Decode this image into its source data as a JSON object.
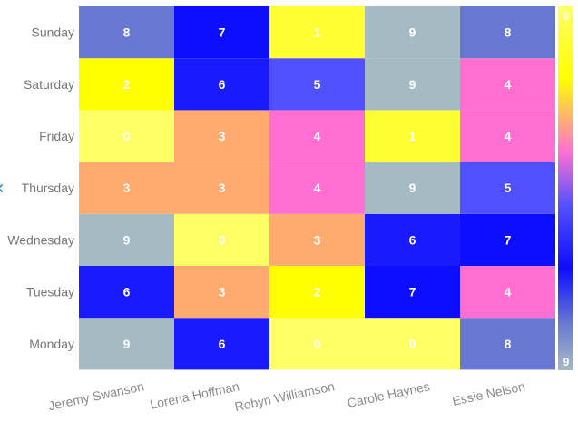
{
  "chart_data": {
    "type": "heatmap",
    "x_categories": [
      "Jeremy Swanson",
      "Lorena Hoffman",
      "Robyn Williamson",
      "Carole Haynes",
      "Essie Nelson"
    ],
    "y_categories": [
      "Monday",
      "Tuesday",
      "Wednesday",
      "Thursday",
      "Friday",
      "Saturday",
      "Sunday"
    ],
    "values": [
      [
        9,
        6,
        0,
        0,
        8
      ],
      [
        6,
        3,
        2,
        7,
        4
      ],
      [
        9,
        0,
        3,
        6,
        7
      ],
      [
        3,
        3,
        4,
        9,
        5
      ],
      [
        0,
        3,
        4,
        1,
        4
      ],
      [
        2,
        6,
        5,
        9,
        4
      ],
      [
        8,
        7,
        1,
        9,
        8
      ]
    ],
    "color_map": {
      "0": "#ffff66",
      "1": "#ffff33",
      "2": "#ffff00",
      "3": "#ffaa6e",
      "4": "#ff6fd2",
      "5": "#5050ff",
      "6": "#1a1aff",
      "7": "#0d0dff",
      "8": "#6878d2",
      "9": "#a6bac4"
    },
    "colorbar": {
      "min_label": "0",
      "max_label": "9"
    },
    "grid": false
  }
}
